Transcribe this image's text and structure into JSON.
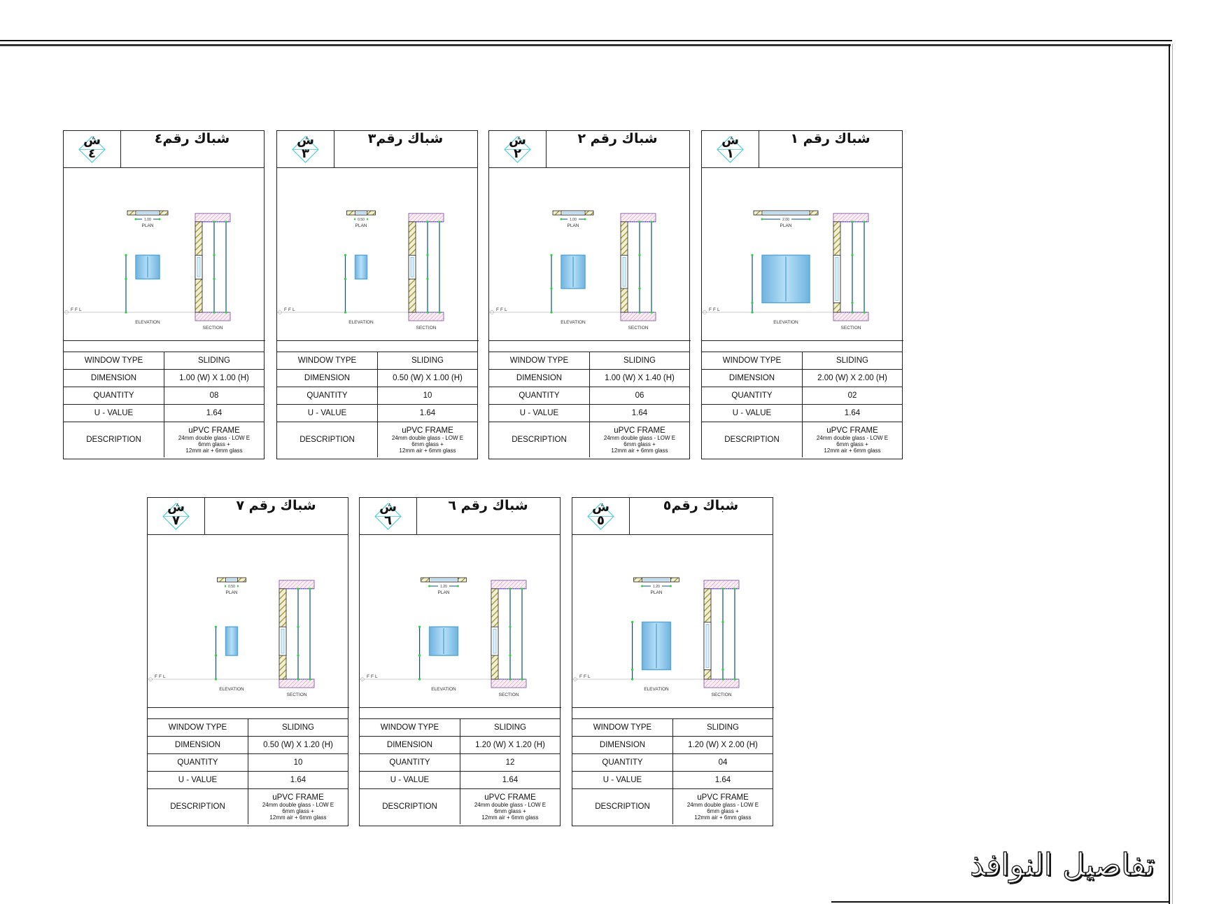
{
  "page_title": "تفاصيل النوافذ",
  "labels": {
    "window_type": "WINDOW TYPE",
    "dimension": "DIMENSION",
    "quantity": "QUANTITY",
    "u_value": "U - VALUE",
    "description": "DESCRIPTION",
    "plan": "PLAN",
    "elevation": "ELEVATION",
    "section": "SECTION",
    "ffl": "FFL"
  },
  "colors": {
    "glass": "#7fbfe6",
    "frame": "#5aa9d8",
    "dim_line": "#0a4f7a",
    "dim_tick": "#2ecc40",
    "wall_hatch": "#b5a94a",
    "slab_hatch": "#9b59b6"
  },
  "cards": [
    {
      "badge_letter": "ش",
      "badge_num": "٤",
      "title": "شباك رقم٤",
      "type": "SLIDING",
      "dimension": "1.00 (W)  X  1.00 (H)",
      "quantity": "08",
      "u_value": "1.64",
      "desc_main": "uPVC FRAME",
      "desc_lines": [
        "24mm double glass - LOW E",
        "6mm glass +",
        "12mm air + 6mm glass"
      ],
      "width_m": 1.0,
      "height_m": 1.0,
      "sill_m": 1.4,
      "plan_dim": "1.00"
    },
    {
      "badge_letter": "ش",
      "badge_num": "٣",
      "title": "شباك رقم٣",
      "type": "SLIDING",
      "dimension": "0.50 (W)  X  1.00 (H)",
      "quantity": "10",
      "u_value": "1.64",
      "desc_main": "uPVC FRAME",
      "desc_lines": [
        "24mm double glass - LOW E",
        "6mm glass +",
        "12mm air + 6mm glass"
      ],
      "width_m": 0.5,
      "height_m": 1.0,
      "sill_m": 1.4,
      "plan_dim": "0.50"
    },
    {
      "badge_letter": "ش",
      "badge_num": "٢",
      "title": "شباك رقم ٢",
      "type": "SLIDING",
      "dimension": "1.00 (W)  X  1.40 (H)",
      "quantity": "06",
      "u_value": "1.64",
      "desc_main": "uPVC FRAME",
      "desc_lines": [
        "24mm double glass - LOW E",
        "6mm glass +",
        "12mm air + 6mm glass"
      ],
      "width_m": 1.0,
      "height_m": 1.4,
      "sill_m": 1.0,
      "plan_dim": "1.00"
    },
    {
      "badge_letter": "ش",
      "badge_num": "١",
      "title": "شباك رقم ١",
      "type": "SLIDING",
      "dimension": "2.00 (W)  X  2.00 (H)",
      "quantity": "02",
      "u_value": "1.64",
      "desc_main": "uPVC FRAME",
      "desc_lines": [
        "24mm double glass - LOW E",
        "6mm glass +",
        "12mm air + 6mm glass"
      ],
      "width_m": 2.0,
      "height_m": 2.0,
      "sill_m": 0.4,
      "plan_dim": "2.00"
    },
    {
      "badge_letter": "ش",
      "badge_num": "٧",
      "title": "شباك رقم ٧",
      "type": "SLIDING",
      "dimension": "0.50 (W)  X  1.20 (H)",
      "quantity": "10",
      "u_value": "1.64",
      "desc_main": "uPVC FRAME",
      "desc_lines": [
        "24mm double glass - LOW E",
        "6mm glass +",
        "12mm air + 6mm glass"
      ],
      "width_m": 0.5,
      "height_m": 1.2,
      "sill_m": 1.0,
      "plan_dim": "0.50"
    },
    {
      "badge_letter": "ش",
      "badge_num": "٦",
      "title": "شباك رقم ٦",
      "type": "SLIDING",
      "dimension": "1.20 (W)  X  1.20 (H)",
      "quantity": "12",
      "u_value": "1.64",
      "desc_main": "uPVC FRAME",
      "desc_lines": [
        "24mm double glass - LOW E",
        "6mm glass +",
        "12mm air + 6mm glass"
      ],
      "width_m": 1.2,
      "height_m": 1.2,
      "sill_m": 1.0,
      "plan_dim": "1.20"
    },
    {
      "badge_letter": "ش",
      "badge_num": "٥",
      "title": "شباك رقم٥",
      "type": "SLIDING",
      "dimension": "1.20 (W)  X  2.00 (H)",
      "quantity": "04",
      "u_value": "1.64",
      "desc_main": "uPVC FRAME",
      "desc_lines": [
        "24mm double glass - LOW E",
        "6mm glass +",
        "12mm air + 6mm glass"
      ],
      "width_m": 1.2,
      "height_m": 2.0,
      "sill_m": 0.4,
      "plan_dim": "1.20"
    }
  ]
}
